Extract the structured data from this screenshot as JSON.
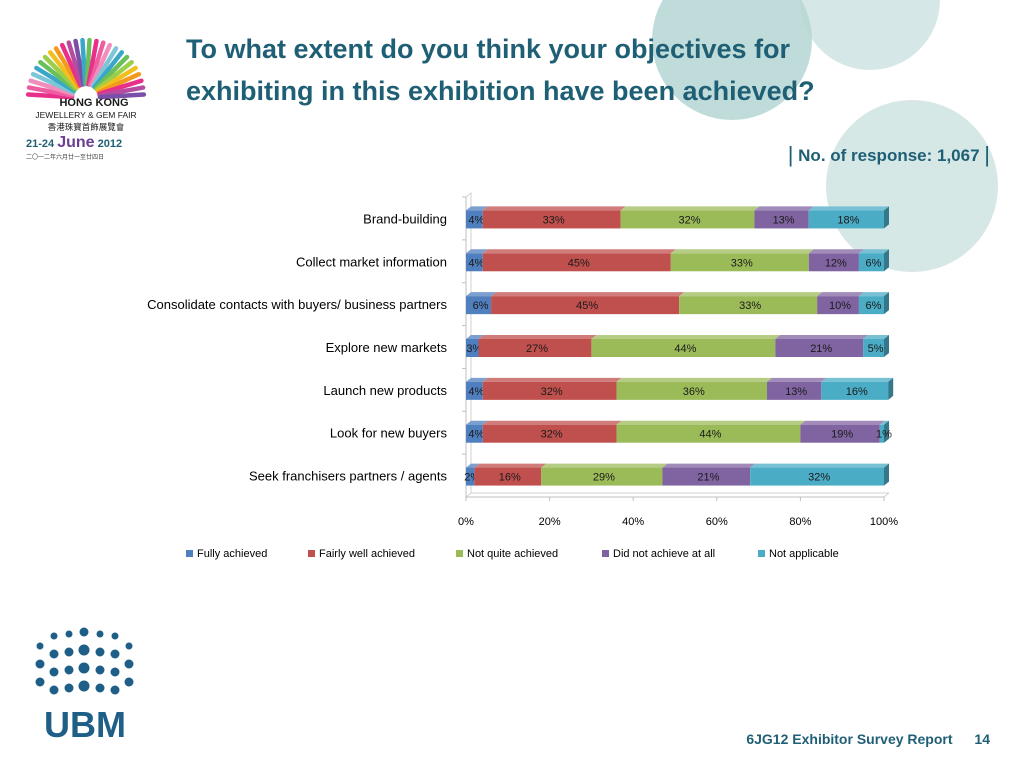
{
  "title": "To what extent do you think your objectives for exhibiting in this exhibition have been achieved?",
  "response_label": "No. of response: 1,067",
  "logo": {
    "line1": "HONG KONG",
    "line2": "JEWELLERY & GEM FAIR",
    "line3": "香港珠寶首飾展覽會",
    "date_prefix": "21-24",
    "date_month": "June",
    "date_year": "2012",
    "line5": "二〇一二年六月廿一至廿四日"
  },
  "ubm_text": "UBM",
  "footer": {
    "report": "6JG12 Exhibitor Survey Report",
    "page": "14"
  },
  "colors": {
    "Fully achieved": "#4f7fbe",
    "Fairly well achieved": "#c0504d",
    "Not quite achieved": "#9bbb59",
    "Did not achieve at all": "#8064a2",
    "Not applicable": "#4bacc6",
    "title": "#1f5f75"
  },
  "chart_data": {
    "type": "bar",
    "orientation": "horizontal",
    "stacked": "percent",
    "categories": [
      "Brand-building",
      "Collect market information",
      "Consolidate contacts with buyers/ business partners",
      "Explore new markets",
      "Launch new products",
      "Look for new buyers",
      "Seek franchisers partners / agents"
    ],
    "series": [
      {
        "name": "Fully achieved",
        "values": [
          4,
          4,
          6,
          3,
          4,
          4,
          2
        ]
      },
      {
        "name": "Fairly well achieved",
        "values": [
          33,
          45,
          45,
          27,
          32,
          32,
          16
        ]
      },
      {
        "name": "Not quite achieved",
        "values": [
          32,
          33,
          33,
          44,
          36,
          44,
          29
        ]
      },
      {
        "name": "Did not achieve at all",
        "values": [
          13,
          12,
          10,
          21,
          13,
          19,
          21
        ]
      },
      {
        "name": "Not applicable",
        "values": [
          18,
          6,
          6,
          5,
          16,
          1,
          32
        ]
      }
    ],
    "x_ticks": [
      "0%",
      "20%",
      "40%",
      "60%",
      "80%",
      "100%"
    ],
    "xlim": [
      0,
      100
    ],
    "legend": "bottom",
    "grid": false
  }
}
